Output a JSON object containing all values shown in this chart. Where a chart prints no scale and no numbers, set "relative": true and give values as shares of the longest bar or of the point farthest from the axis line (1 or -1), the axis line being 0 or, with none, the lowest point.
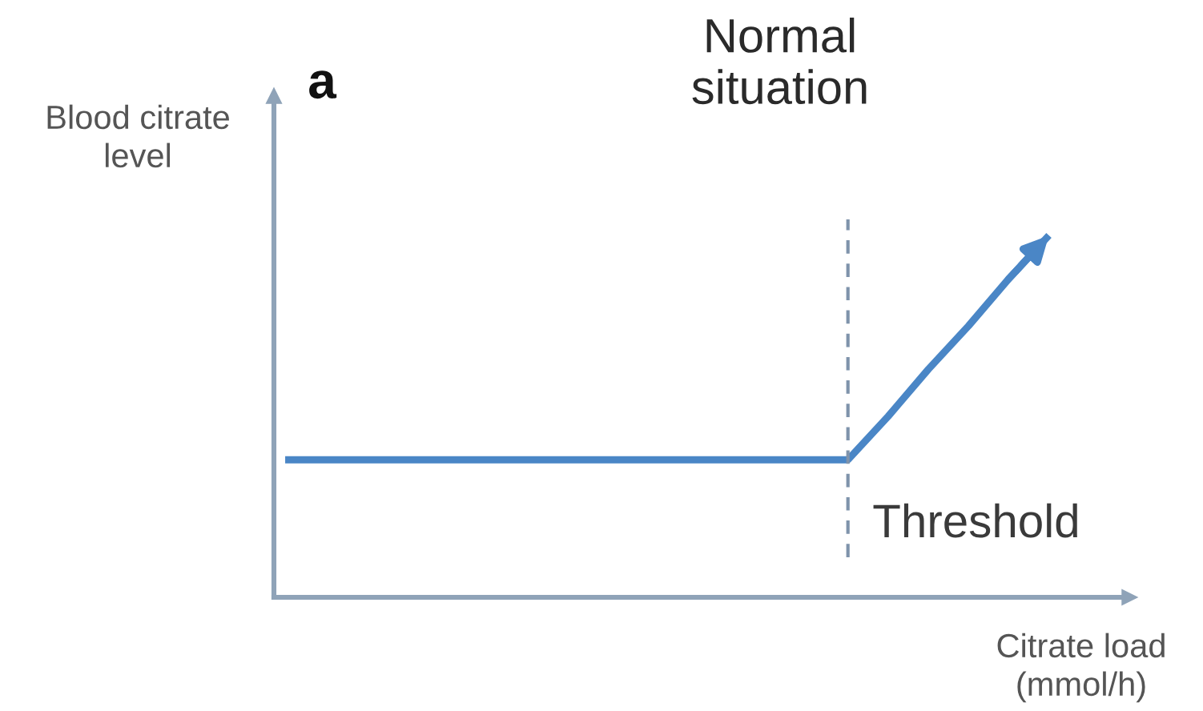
{
  "chart_data": {
    "type": "line",
    "title": "Normal\nsituation",
    "ylabel": "Blood citrate\nlevel",
    "xlabel": "Citrate load\n(mmol/h)",
    "annotations": [
      "a",
      "Threshold"
    ],
    "categories": [
      null,
      null,
      null,
      null,
      null,
      null,
      null,
      null,
      null,
      null,
      null,
      null,
      null,
      null,
      null,
      null,
      null,
      null,
      null,
      null
    ],
    "values": [
      0.38,
      0.38,
      0.38,
      0.38,
      0.38,
      0.38,
      0.38,
      0.38,
      0.38,
      0.38,
      0.38,
      0.38,
      0.38,
      0.38,
      0.38,
      0.5,
      0.63,
      0.75,
      0.88,
      1.0
    ],
    "color": "#4a86c6",
    "relative": true
  }
}
